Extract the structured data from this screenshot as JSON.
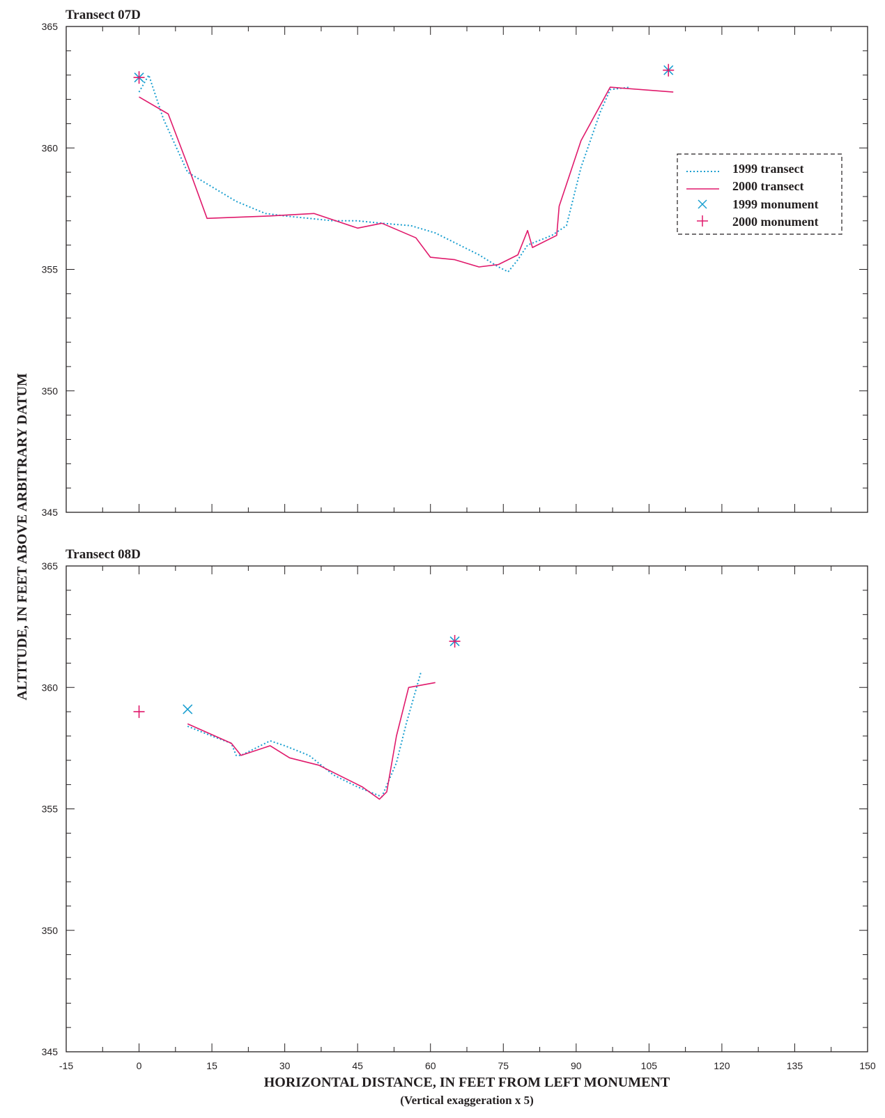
{
  "figure": {
    "ylabel": "ALTITUDE, IN FEET ABOVE ARBITRARY DATUM",
    "xlabel": "HORIZONTAL DISTANCE, IN FEET FROM LEFT MONUMENT",
    "xnote": "(Vertical exaggeration x 5)"
  },
  "colors": {
    "y1999": "#1a9fd0",
    "y2000": "#e0196b",
    "axis": "#231f20"
  },
  "legend": {
    "placement": "top-right of upper panel",
    "items": [
      {
        "label": "1999 transect",
        "marker": "dotted-line",
        "color": "#1a9fd0"
      },
      {
        "label": "2000 transect",
        "marker": "solid-line",
        "color": "#e0196b"
      },
      {
        "label": "1999 monument",
        "marker": "x-marker",
        "color": "#1a9fd0"
      },
      {
        "label": "2000 monument",
        "marker": "plus-marker",
        "color": "#e0196b"
      }
    ]
  },
  "chart_data": [
    {
      "type": "line",
      "title": "Transect 07D",
      "xlim": [
        -15,
        150
      ],
      "ylim": [
        345,
        365
      ],
      "xticks": [
        -15,
        0,
        15,
        30,
        45,
        60,
        75,
        90,
        105,
        120,
        135,
        150
      ],
      "yticks": [
        345,
        350,
        355,
        360,
        365
      ],
      "ytick_labels": [
        "345",
        "350",
        "355",
        "360",
        "365"
      ],
      "series": [
        {
          "name": "1999 transect",
          "style": "dotted",
          "x": [
            0,
            2,
            5,
            10,
            15,
            20,
            26,
            30,
            35,
            40,
            45,
            50,
            56,
            61,
            65,
            70,
            74,
            76,
            78,
            80,
            85,
            88,
            91,
            95,
            97,
            101
          ],
          "y": [
            362.3,
            363.0,
            361.2,
            359.0,
            358.4,
            357.8,
            357.3,
            357.2,
            357.1,
            357.0,
            357.0,
            356.9,
            356.8,
            356.5,
            356.1,
            355.6,
            355.1,
            354.9,
            355.4,
            356.0,
            356.4,
            356.8,
            359.2,
            361.5,
            362.4,
            362.5
          ]
        },
        {
          "name": "2000 transect",
          "style": "solid",
          "x": [
            0,
            6,
            10,
            14,
            27,
            36,
            45,
            50,
            57,
            60,
            65,
            70,
            74,
            78,
            80,
            81,
            86,
            86.5,
            91,
            97,
            110
          ],
          "y": [
            362.1,
            361.4,
            359.3,
            357.1,
            357.2,
            357.3,
            356.7,
            356.9,
            356.3,
            355.5,
            355.4,
            355.1,
            355.2,
            355.6,
            356.6,
            355.9,
            356.4,
            357.6,
            360.3,
            362.5,
            362.3
          ]
        }
      ],
      "monuments": [
        {
          "name": "1999 monument",
          "marker": "x",
          "points": [
            [
              0,
              362.9
            ],
            [
              109,
              363.2
            ]
          ]
        },
        {
          "name": "2000 monument",
          "marker": "plus",
          "points": [
            [
              0,
              362.9
            ],
            [
              109,
              363.2
            ]
          ]
        }
      ]
    },
    {
      "type": "line",
      "title": "Transect 08D",
      "xlim": [
        -15,
        150
      ],
      "ylim": [
        345,
        365
      ],
      "xticks": [
        -15,
        0,
        15,
        30,
        45,
        60,
        75,
        90,
        105,
        120,
        135,
        150
      ],
      "xtick_labels": [
        "-15",
        "0",
        "15",
        "30",
        "45",
        "60",
        "75",
        "90",
        "105",
        "120",
        "135",
        "150"
      ],
      "yticks": [
        345,
        350,
        355,
        360,
        365
      ],
      "ytick_labels": [
        "345",
        "350",
        "355",
        "360",
        "365"
      ],
      "series": [
        {
          "name": "1999 transect",
          "style": "dotted",
          "x": [
            10,
            15,
            19,
            20,
            21,
            27,
            30,
            35,
            40,
            45,
            50,
            53,
            55,
            58
          ],
          "y": [
            358.4,
            358.0,
            357.7,
            357.2,
            357.2,
            357.8,
            357.6,
            357.2,
            356.4,
            355.9,
            355.5,
            356.9,
            358.5,
            360.6
          ]
        },
        {
          "name": "2000 transect",
          "style": "solid",
          "x": [
            10,
            19,
            21,
            27,
            31,
            37,
            46,
            49.5,
            51,
            53,
            55.5,
            61
          ],
          "y": [
            358.5,
            357.7,
            357.2,
            357.6,
            357.1,
            356.8,
            355.9,
            355.4,
            355.7,
            358.0,
            360.0,
            360.2
          ]
        }
      ],
      "monuments": [
        {
          "name": "1999 monument",
          "marker": "x",
          "points": [
            [
              10,
              359.1
            ],
            [
              65,
              361.9
            ]
          ]
        },
        {
          "name": "2000 monument",
          "marker": "plus",
          "points": [
            [
              0,
              359.0
            ],
            [
              65,
              361.9
            ]
          ]
        }
      ]
    }
  ]
}
